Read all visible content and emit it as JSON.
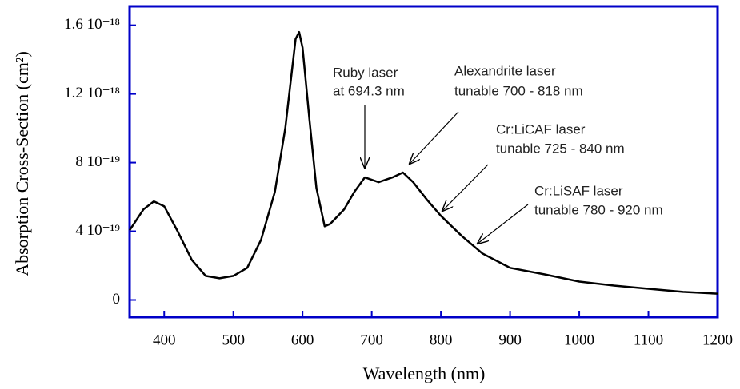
{
  "chart_data": {
    "type": "line",
    "x_label": "Wavelength (nm)",
    "y_label": "Absorption Cross-Section (cm²)",
    "xlim": [
      350,
      1200
    ],
    "xticks": [
      400,
      500,
      600,
      700,
      800,
      900,
      1000,
      1100,
      1200
    ],
    "ylim": [
      -1e-19,
      1.71e-18
    ],
    "yticks": [
      {
        "value": 0,
        "label": "0"
      },
      {
        "value": 4e-19,
        "label": "4 10⁻¹⁹"
      },
      {
        "value": 8e-19,
        "label": "8 10⁻¹⁹"
      },
      {
        "value": 1.2e-18,
        "label": "1.2 10⁻¹⁸"
      },
      {
        "value": 1.6e-18,
        "label": "1.6 10⁻¹⁸"
      }
    ],
    "frame_color": "#0000c8",
    "x": [
      350,
      370,
      385,
      400,
      420,
      440,
      460,
      480,
      500,
      520,
      540,
      560,
      575,
      590,
      595,
      600,
      610,
      620,
      632,
      640,
      660,
      675,
      690,
      710,
      730,
      745,
      760,
      780,
      800,
      830,
      860,
      900,
      950,
      1000,
      1050,
      1100,
      1150,
      1200
    ],
    "series": [
      {
        "color": "#000000",
        "values": [
          4.06e-19,
          5.27e-19,
          5.74e-19,
          5.46e-19,
          3.96e-19,
          2.33e-19,
          1.4e-19,
          1.26e-19,
          1.4e-19,
          1.87e-19,
          3.5e-19,
          6.3e-19,
          1e-18,
          1.52e-18,
          1.56e-18,
          1.47e-18,
          1.05e-18,
          6.53e-19,
          4.29e-19,
          4.43e-19,
          5.27e-19,
          6.3e-19,
          7.14e-19,
          6.86e-19,
          7.14e-19,
          7.42e-19,
          6.86e-19,
          5.83e-19,
          4.9e-19,
          3.73e-19,
          2.71e-19,
          1.87e-19,
          1.49e-19,
          1.07e-19,
          8.4e-20,
          6.5e-20,
          4.7e-20,
          3.7e-20
        ]
      }
    ],
    "annotations": [
      "Ruby laser",
      "at 694.3 nm",
      "Alexandrite laser",
      "tunable 700 - 818 nm",
      "Cr:LiCAF laser",
      "tunable 725 - 840 nm",
      "Cr:LiSAF laser",
      "tunable 780 - 920 nm"
    ]
  }
}
